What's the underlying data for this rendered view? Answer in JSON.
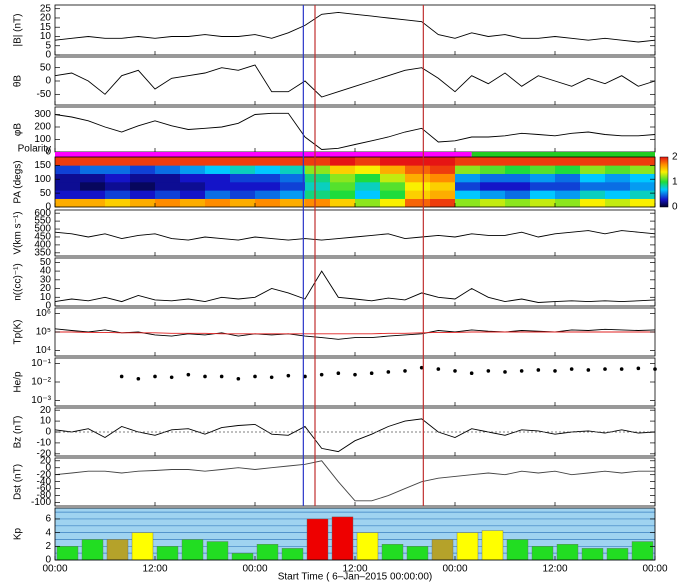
{
  "chart_data": {
    "type": "stack",
    "xlabel": "Start Time ( 6–Jan–2015 00:00:00)",
    "xlim": [
      0,
      72
    ],
    "xticks": [
      {
        "value": 0,
        "label": "00:00"
      },
      {
        "value": 12,
        "label": "12:00"
      },
      {
        "value": 24,
        "label": "00:00"
      },
      {
        "value": 36,
        "label": "12:00"
      },
      {
        "value": 48,
        "label": "00:00"
      },
      {
        "value": 60,
        "label": "12:00"
      },
      {
        "value": 72,
        "label": "00:00"
      }
    ],
    "x": [
      0,
      2,
      4,
      6,
      8,
      10,
      12,
      14,
      16,
      18,
      20,
      22,
      24,
      26,
      28,
      30,
      32,
      34,
      36,
      38,
      40,
      42,
      44,
      46,
      48,
      50,
      52,
      54,
      56,
      58,
      60,
      62,
      64,
      66,
      68,
      70,
      72
    ],
    "x_edges": [
      0,
      3,
      6,
      9,
      12,
      15,
      18,
      21,
      24,
      27,
      30,
      33,
      36,
      39,
      42,
      45,
      48,
      51,
      54,
      57,
      60,
      63,
      66,
      69,
      72
    ],
    "vlines": [
      {
        "x": 29.8,
        "color": "#2a35c8"
      },
      {
        "x": 31.2,
        "color": "#c03030"
      },
      {
        "x": 44.2,
        "color": "#c03030"
      }
    ],
    "panels": [
      {
        "type": "line",
        "ylabel": "|B| (nT)",
        "ylim": [
          0,
          27
        ],
        "yticks": [
          0,
          5,
          10,
          15,
          20,
          25
        ],
        "series": [
          {
            "color": "#000",
            "values": [
              8,
              9,
              10,
              9,
              9,
              10,
              9,
              10,
              10,
              11,
              10,
              10,
              11,
              9,
              12,
              16,
              22,
              23,
              22,
              21,
              20,
              19,
              18,
              11,
              9,
              12,
              10,
              11,
              9,
              9,
              10,
              9,
              8,
              9,
              8,
              7,
              8
            ]
          }
        ]
      },
      {
        "type": "line",
        "ylabel": "θB",
        "ylim": [
          -90,
          90
        ],
        "yticks": [
          -50,
          0,
          50
        ],
        "series": [
          {
            "color": "#000",
            "values": [
              20,
              30,
              0,
              -50,
              20,
              40,
              -30,
              10,
              20,
              30,
              50,
              40,
              60,
              -40,
              -40,
              0,
              -60,
              -40,
              -20,
              0,
              20,
              40,
              50,
              10,
              -40,
              20,
              -10,
              30,
              -20,
              20,
              0,
              -20,
              10,
              -10,
              20,
              -20,
              0
            ]
          }
        ]
      },
      {
        "type": "line",
        "ylabel": "φB",
        "ylim": [
          0,
          360
        ],
        "yticks": [
          0,
          100,
          200,
          300
        ],
        "series": [
          {
            "color": "#000",
            "values": [
              300,
              280,
              250,
              200,
              160,
              210,
              250,
              210,
              180,
              190,
              200,
              230,
              300,
              310,
              310,
              120,
              20,
              30,
              60,
              90,
              120,
              160,
              190,
              80,
              90,
              120,
              120,
              130,
              150,
              140,
              130,
              150,
              160,
              140,
              130,
              130,
              140
            ]
          }
        ]
      },
      {
        "type": "strip",
        "ylabel": "Polarity",
        "segments": [
          {
            "start": 0,
            "end": 50,
            "color": "#ff00ff"
          },
          {
            "start": 50,
            "end": 72,
            "color": "#22cc22"
          }
        ]
      },
      {
        "type": "spectrogram",
        "ylabel": "PA (degs)",
        "ylim": [
          0,
          180
        ],
        "yticks": [
          0,
          50,
          100,
          150
        ],
        "pa_edges": [
          0,
          30,
          60,
          90,
          120,
          150,
          180
        ],
        "clim": [
          0,
          2
        ],
        "cticks": [
          0,
          1,
          2
        ],
        "values": [
          [
            1.6,
            0.3,
            0.2,
            0.2,
            0.4,
            1.9
          ],
          [
            1.6,
            0.3,
            0.1,
            0.2,
            0.5,
            1.9
          ],
          [
            1.5,
            0.4,
            0.2,
            0.3,
            0.5,
            1.9
          ],
          [
            1.6,
            0.3,
            0.1,
            0.2,
            0.4,
            1.9
          ],
          [
            1.7,
            0.4,
            0.2,
            0.2,
            0.5,
            1.9
          ],
          [
            1.6,
            0.3,
            0.2,
            0.3,
            0.6,
            1.9
          ],
          [
            1.7,
            0.5,
            0.3,
            0.3,
            0.7,
            1.9
          ],
          [
            1.6,
            0.4,
            0.3,
            0.4,
            0.8,
            1.9
          ],
          [
            1.7,
            0.5,
            0.3,
            0.4,
            0.7,
            1.9
          ],
          [
            1.6,
            0.6,
            0.4,
            0.5,
            0.8,
            1.9
          ],
          [
            1.7,
            0.9,
            0.8,
            0.9,
            1.2,
            1.9
          ],
          [
            1.5,
            1.0,
            1.1,
            1.2,
            1.5,
            2.0
          ],
          [
            1.2,
            0.7,
            0.8,
            1.0,
            1.4,
            1.9
          ],
          [
            1.4,
            1.0,
            1.1,
            1.3,
            1.6,
            2.0
          ],
          [
            1.8,
            1.5,
            1.4,
            1.6,
            1.8,
            2.0
          ],
          [
            1.9,
            1.6,
            1.5,
            1.7,
            1.9,
            2.0
          ],
          [
            1.2,
            0.7,
            0.4,
            0.6,
            1.2,
            1.9
          ],
          [
            1.3,
            0.6,
            0.3,
            0.5,
            1.1,
            1.9
          ],
          [
            1.2,
            0.5,
            0.3,
            0.5,
            1.0,
            1.9
          ],
          [
            1.3,
            0.7,
            0.4,
            0.6,
            1.1,
            1.9
          ],
          [
            1.2,
            0.6,
            0.4,
            0.5,
            1.0,
            1.9
          ],
          [
            1.4,
            0.8,
            0.5,
            0.7,
            1.2,
            1.9
          ],
          [
            1.3,
            0.7,
            0.5,
            0.6,
            1.1,
            1.9
          ],
          [
            1.4,
            0.8,
            0.6,
            0.7,
            1.2,
            1.9
          ]
        ]
      },
      {
        "type": "line",
        "ylabel": "V(km s⁻¹)",
        "ylim": [
          330,
          620
        ],
        "yticks": [
          350,
          400,
          450,
          500,
          550,
          600
        ],
        "series": [
          {
            "color": "#000",
            "values": [
              480,
              470,
              450,
              470,
              440,
              460,
              470,
              440,
              430,
              450,
              440,
              430,
              450,
              440,
              430,
              440,
              430,
              440,
              450,
              460,
              470,
              440,
              450,
              460,
              450,
              470,
              460,
              460,
              480,
              450,
              470,
              480,
              490,
              470,
              490,
              480,
              470
            ]
          }
        ]
      },
      {
        "type": "line",
        "ylabel": "n((cc)⁻¹)",
        "ylim": [
          0,
          55
        ],
        "yticks": [
          0,
          10,
          20,
          30,
          40,
          50
        ],
        "series": [
          {
            "color": "#000",
            "values": [
              5,
              8,
              6,
              10,
              5,
              12,
              7,
              6,
              8,
              5,
              10,
              8,
              10,
              20,
              15,
              8,
              40,
              10,
              8,
              6,
              9,
              7,
              15,
              10,
              8,
              20,
              10,
              5,
              8,
              4,
              5,
              6,
              5,
              6,
              5,
              6,
              7
            ]
          }
        ]
      },
      {
        "type": "line",
        "ylabel": "Tp(K)",
        "log": true,
        "ylim": [
          5000,
          2000000
        ],
        "yticks": [
          {
            "value": 10000,
            "label": "10⁴"
          },
          {
            "value": 100000,
            "label": "10⁵"
          },
          {
            "value": 1000000,
            "label": "10⁶"
          }
        ],
        "series": [
          {
            "color": "#000",
            "values": [
              150000,
              120000,
              100000,
              130000,
              90000,
              100000,
              70000,
              60000,
              80000,
              70000,
              90000,
              60000,
              80000,
              70000,
              80000,
              60000,
              50000,
              40000,
              50000,
              50000,
              60000,
              70000,
              80000,
              120000,
              100000,
              130000,
              110000,
              100000,
              120000,
              110000,
              100000,
              130000,
              120000,
              140000,
              130000,
              120000,
              130000
            ]
          },
          {
            "color": "#e02020",
            "values": [
              100000,
              100000,
              95000,
              95000,
              90000,
              90000,
              90000,
              85000,
              85000,
              85000,
              80000,
              80000,
              80000,
              80000,
              80000,
              80000,
              80000,
              80000,
              80000,
              80000,
              85000,
              85000,
              90000,
              95000,
              95000,
              100000,
              100000,
              100000,
              100000,
              100000,
              100000,
              100000,
              100000,
              100000,
              100000,
              100000,
              100000
            ]
          }
        ]
      },
      {
        "type": "scatter",
        "ylabel": "He/p",
        "log": true,
        "ylim": [
          0.0005,
          0.2
        ],
        "yticks": [
          {
            "value": 0.001,
            "label": "10⁻³"
          },
          {
            "value": 0.01,
            "label": "10⁻²"
          },
          {
            "value": 0.1,
            "label": "10⁻¹"
          }
        ],
        "series": [
          {
            "color": "#000",
            "values": [
              null,
              null,
              null,
              null,
              0.02,
              0.015,
              0.02,
              0.018,
              0.025,
              0.02,
              0.02,
              0.015,
              0.02,
              0.018,
              0.022,
              0.02,
              0.025,
              0.03,
              0.025,
              0.03,
              0.035,
              0.04,
              0.06,
              0.05,
              0.04,
              0.03,
              0.04,
              0.035,
              0.04,
              0.045,
              0.04,
              0.05,
              0.045,
              0.05,
              0.05,
              0.055,
              0.05
            ]
          }
        ]
      },
      {
        "type": "line",
        "ylabel": "Bz (nT)",
        "ylim": [
          -22,
          22
        ],
        "yticks": [
          -20,
          -10,
          0,
          10,
          20
        ],
        "zero_line": true,
        "series": [
          {
            "color": "#000",
            "values": [
              2,
              0,
              3,
              -5,
              5,
              0,
              -3,
              2,
              3,
              -2,
              4,
              6,
              7,
              -2,
              -3,
              5,
              -15,
              -18,
              -8,
              -2,
              5,
              10,
              12,
              0,
              -5,
              3,
              0,
              -3,
              2,
              1,
              -2,
              0,
              1,
              -1,
              2,
              -1,
              0
            ]
          }
        ]
      },
      {
        "type": "line",
        "ylabel": "Dst (nT)",
        "ylim": [
          -110,
          28
        ],
        "yticks": [
          -100,
          -80,
          -60,
          -40,
          -20,
          0,
          20
        ],
        "series": [
          {
            "color": "#444",
            "values": [
              -20,
              -15,
              -10,
              -10,
              -15,
              -10,
              -8,
              -5,
              -5,
              -10,
              -5,
              0,
              -5,
              0,
              5,
              10,
              20,
              -40,
              -95,
              -95,
              -80,
              -60,
              -40,
              -30,
              -25,
              -20,
              -15,
              -20,
              -10,
              -15,
              -10,
              -20,
              -15,
              -10,
              -15,
              -10,
              -10
            ]
          }
        ]
      },
      {
        "type": "bar",
        "ylabel": "Kp",
        "ylim": [
          0,
          7.6
        ],
        "yticks": [
          0,
          2,
          4,
          6
        ],
        "values": [
          2,
          3,
          3,
          4,
          2,
          3,
          2.7,
          1,
          2.3,
          1.7,
          6,
          6.3,
          4,
          2.3,
          2,
          3,
          4,
          4.3,
          3,
          2,
          2.3,
          1.7,
          1.7,
          2.7
        ],
        "colors": [
          "#22dd22",
          "#22dd22",
          "#b5a22a",
          "#ffff00",
          "#22dd22",
          "#22dd22",
          "#22dd22",
          "#22dd22",
          "#22dd22",
          "#22dd22",
          "#ee0000",
          "#ee0000",
          "#ffff00",
          "#22dd22",
          "#22dd22",
          "#b5a22a",
          "#ffff00",
          "#ffff00",
          "#22dd22",
          "#22dd22",
          "#22dd22",
          "#22dd22",
          "#22dd22",
          "#22dd22"
        ]
      }
    ]
  }
}
